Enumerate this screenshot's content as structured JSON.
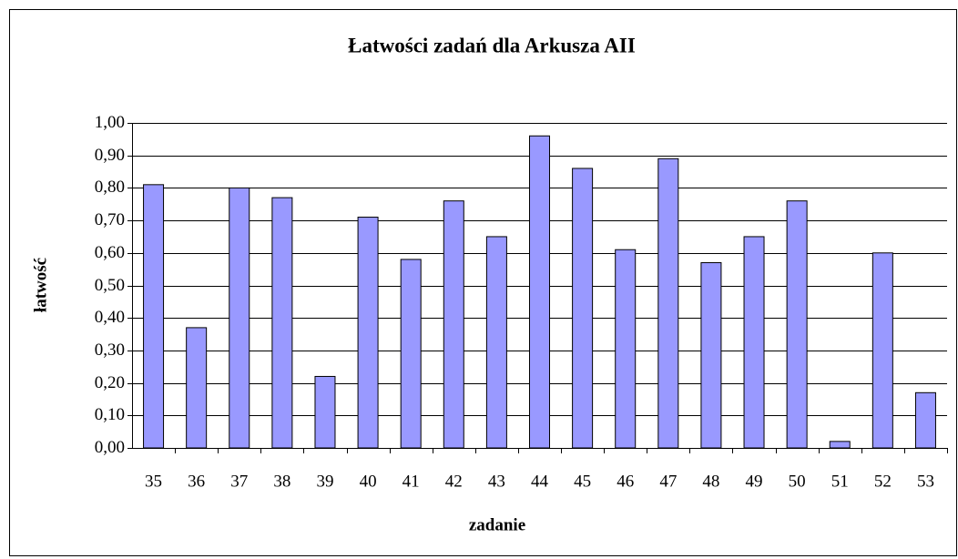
{
  "chart_data": {
    "type": "bar",
    "title": "Łatwości zadań dla Arkusza AII",
    "x_label": "zadanie",
    "y_label": "łatwość",
    "categories": [
      "35",
      "36",
      "37",
      "38",
      "39",
      "40",
      "41",
      "42",
      "43",
      "44",
      "45",
      "46",
      "47",
      "48",
      "49",
      "50",
      "51",
      "52",
      "53"
    ],
    "values": [
      0.81,
      0.37,
      0.8,
      0.77,
      0.22,
      0.71,
      0.58,
      0.76,
      0.65,
      0.96,
      0.86,
      0.61,
      0.89,
      0.57,
      0.65,
      0.76,
      0.02,
      0.6,
      0.17
    ],
    "color": "#9999ff",
    "ylim": [
      0,
      1
    ],
    "yticks": [
      {
        "value": 0,
        "label": "0,00"
      },
      {
        "value": 0.1,
        "label": "0,10"
      },
      {
        "value": 0.2,
        "label": "0,20"
      },
      {
        "value": 0.3,
        "label": "0,30"
      },
      {
        "value": 0.4,
        "label": "0,40"
      },
      {
        "value": 0.5,
        "label": "0,50"
      },
      {
        "value": 0.6,
        "label": "0,60"
      },
      {
        "value": 0.7,
        "label": "0,70"
      },
      {
        "value": 0.8,
        "label": "0,80"
      },
      {
        "value": 0.9,
        "label": "0,90"
      },
      {
        "value": 1,
        "label": "1,00"
      }
    ],
    "grid": true
  }
}
